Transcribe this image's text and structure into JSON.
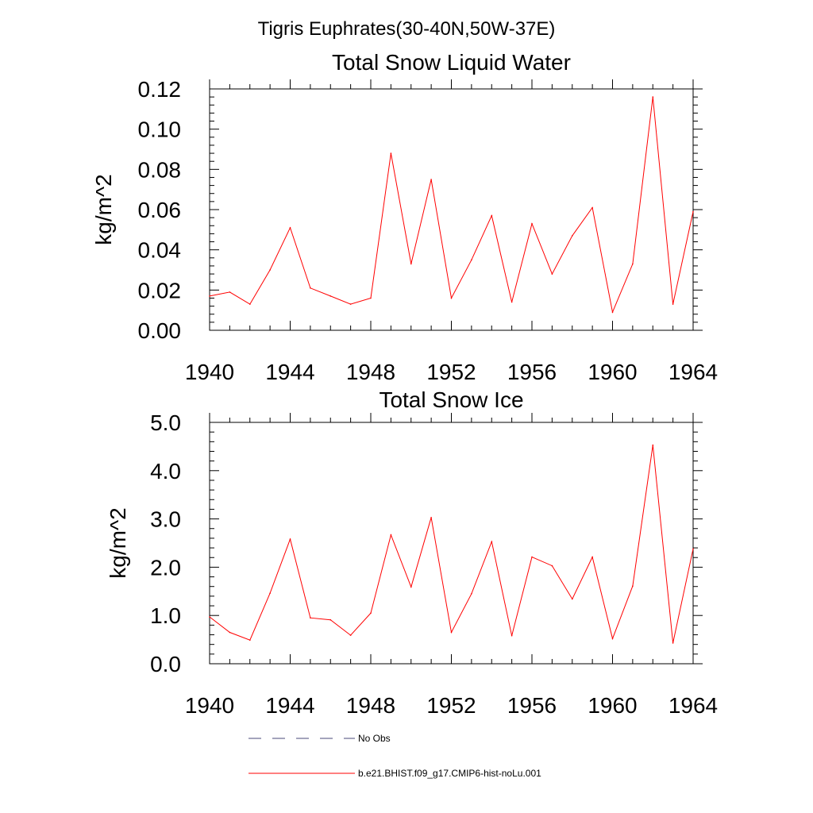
{
  "figure_title": "Tigris Euphrates(30-40N,50W-37E)",
  "legend": [
    {
      "label": "No Obs",
      "color": "#4a4a7a",
      "style": "dashed"
    },
    {
      "label": "b.e21.BHIST.f09_g17.CMIP6-hist-noLu.001",
      "color": "#ff0000",
      "style": "solid"
    }
  ],
  "chart_data": [
    {
      "type": "line",
      "title": "Total Snow Liquid Water",
      "xlabel": "",
      "ylabel": "kg/m^2",
      "xlim": [
        1940,
        1964
      ],
      "ylim": [
        0,
        0.12
      ],
      "grid": false,
      "x_ticks": [
        1940,
        1944,
        1948,
        1952,
        1956,
        1960,
        1964
      ],
      "y_ticks": [
        "0.00",
        "0.02",
        "0.04",
        "0.06",
        "0.08",
        "0.10",
        "0.12"
      ],
      "x": [
        1940,
        1941,
        1942,
        1943,
        1944,
        1945,
        1946,
        1947,
        1948,
        1949,
        1950,
        1951,
        1952,
        1953,
        1954,
        1955,
        1956,
        1957,
        1958,
        1959,
        1960,
        1961,
        1962,
        1963,
        1964
      ],
      "series": [
        {
          "color": "#ff0000",
          "values": [
            0.017,
            0.019,
            0.013,
            0.03,
            0.051,
            0.021,
            0.017,
            0.013,
            0.016,
            0.088,
            0.033,
            0.075,
            0.016,
            0.035,
            0.057,
            0.014,
            0.053,
            0.028,
            0.047,
            0.061,
            0.009,
            0.033,
            0.116,
            0.013,
            0.059
          ]
        }
      ]
    },
    {
      "type": "line",
      "title": "Total Snow Ice",
      "xlabel": "",
      "ylabel": "kg/m^2",
      "xlim": [
        1940,
        1964
      ],
      "ylim": [
        0,
        5
      ],
      "grid": false,
      "x_ticks": [
        1940,
        1944,
        1948,
        1952,
        1956,
        1960,
        1964
      ],
      "y_ticks": [
        "0.0",
        "1.0",
        "2.0",
        "3.0",
        "4.0",
        "5.0"
      ],
      "x": [
        1940,
        1941,
        1942,
        1943,
        1944,
        1945,
        1946,
        1947,
        1948,
        1949,
        1950,
        1951,
        1952,
        1953,
        1954,
        1955,
        1956,
        1957,
        1958,
        1959,
        1960,
        1961,
        1962,
        1963,
        1964
      ],
      "series": [
        {
          "color": "#ff0000",
          "values": [
            0.97,
            0.65,
            0.49,
            1.46,
            2.58,
            0.95,
            0.91,
            0.59,
            1.05,
            2.67,
            1.59,
            3.03,
            0.65,
            1.45,
            2.53,
            0.58,
            2.21,
            2.03,
            1.34,
            2.21,
            0.52,
            1.61,
            4.53,
            0.43,
            2.38
          ]
        }
      ]
    }
  ]
}
